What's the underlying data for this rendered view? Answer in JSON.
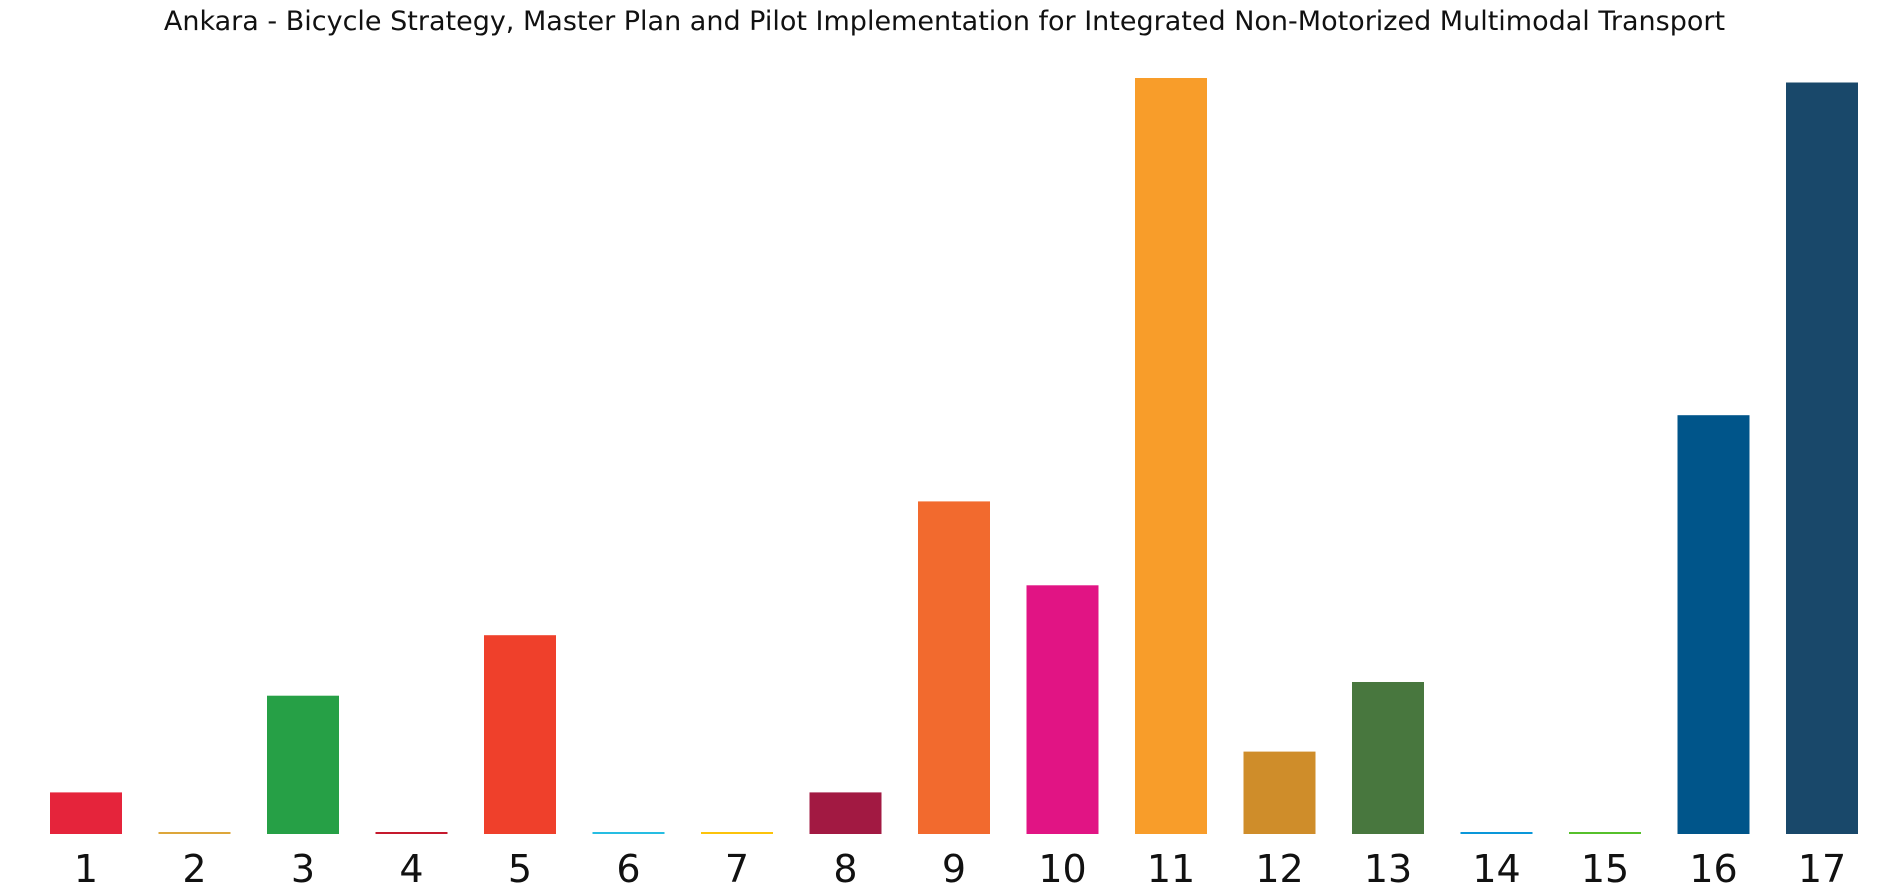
{
  "chart_data": {
    "type": "bar",
    "title": "Ankara - Bicycle Strategy, Master Plan and Pilot Implementation for Integrated Non-Motorized Multimodal Transport",
    "xlabel": "",
    "ylabel": "",
    "categories": [
      "1",
      "2",
      "3",
      "4",
      "5",
      "6",
      "7",
      "8",
      "9",
      "10",
      "11",
      "12",
      "13",
      "14",
      "15",
      "16",
      "17"
    ],
    "values": [
      5.5,
      0.2,
      18.3,
      0.2,
      26.3,
      0.2,
      0.2,
      5.5,
      44.0,
      32.9,
      100,
      10.9,
      20.1,
      0.2,
      0.2,
      55.4,
      99.4
    ],
    "colors": [
      "#E5243B",
      "#DDA63A",
      "#26A046",
      "#C5192D",
      "#EF402B",
      "#26BDE2",
      "#FCC30B",
      "#A21942",
      "#F26A2E",
      "#E11484",
      "#F89D2A",
      "#CF8D2A",
      "#48773E",
      "#0A97D9",
      "#56C02B",
      "#00558A",
      "#19486A"
    ],
    "ylim": [
      0,
      100
    ],
    "grid": false,
    "legend": "none",
    "y_axis_visible": false
  }
}
